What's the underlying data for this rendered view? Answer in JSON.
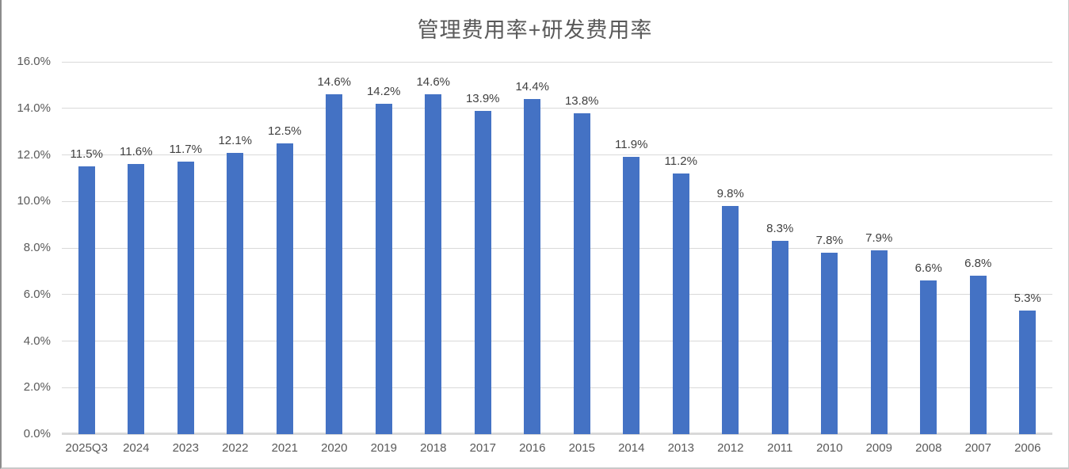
{
  "chart_data": {
    "type": "bar",
    "title": "管理费用率+研发费用率",
    "categories": [
      "2025Q3",
      "2024",
      "2023",
      "2022",
      "2021",
      "2020",
      "2019",
      "2018",
      "2017",
      "2016",
      "2015",
      "2014",
      "2013",
      "2012",
      "2011",
      "2010",
      "2009",
      "2008",
      "2007",
      "2006"
    ],
    "values": [
      11.5,
      11.6,
      11.7,
      12.1,
      12.5,
      14.6,
      14.2,
      14.6,
      13.9,
      14.4,
      13.8,
      11.9,
      11.2,
      9.8,
      8.3,
      7.8,
      7.9,
      6.6,
      6.8,
      5.3
    ],
    "data_labels": [
      "11.5%",
      "11.6%",
      "11.7%",
      "12.1%",
      "12.5%",
      "14.6%",
      "14.2%",
      "14.6%",
      "13.9%",
      "14.4%",
      "13.8%",
      "11.9%",
      "11.2%",
      "9.8%",
      "8.3%",
      "7.8%",
      "7.9%",
      "6.6%",
      "6.8%",
      "5.3%"
    ],
    "ytick_labels": [
      "0.0%",
      "2.0%",
      "4.0%",
      "6.0%",
      "8.0%",
      "10.0%",
      "12.0%",
      "14.0%",
      "16.0%"
    ],
    "ytick_values": [
      0,
      2,
      4,
      6,
      8,
      10,
      12,
      14,
      16
    ],
    "ylim": [
      0,
      16
    ],
    "xlabel": "",
    "ylabel": "",
    "grid": true,
    "legend_position": "none",
    "bar_color": "#4472C4",
    "gridline_color": "#D9D9D9",
    "title_color": "#595959",
    "axis_tick_color": "#595959",
    "data_label_color": "#404040",
    "background_color": "#FFFFFF"
  }
}
